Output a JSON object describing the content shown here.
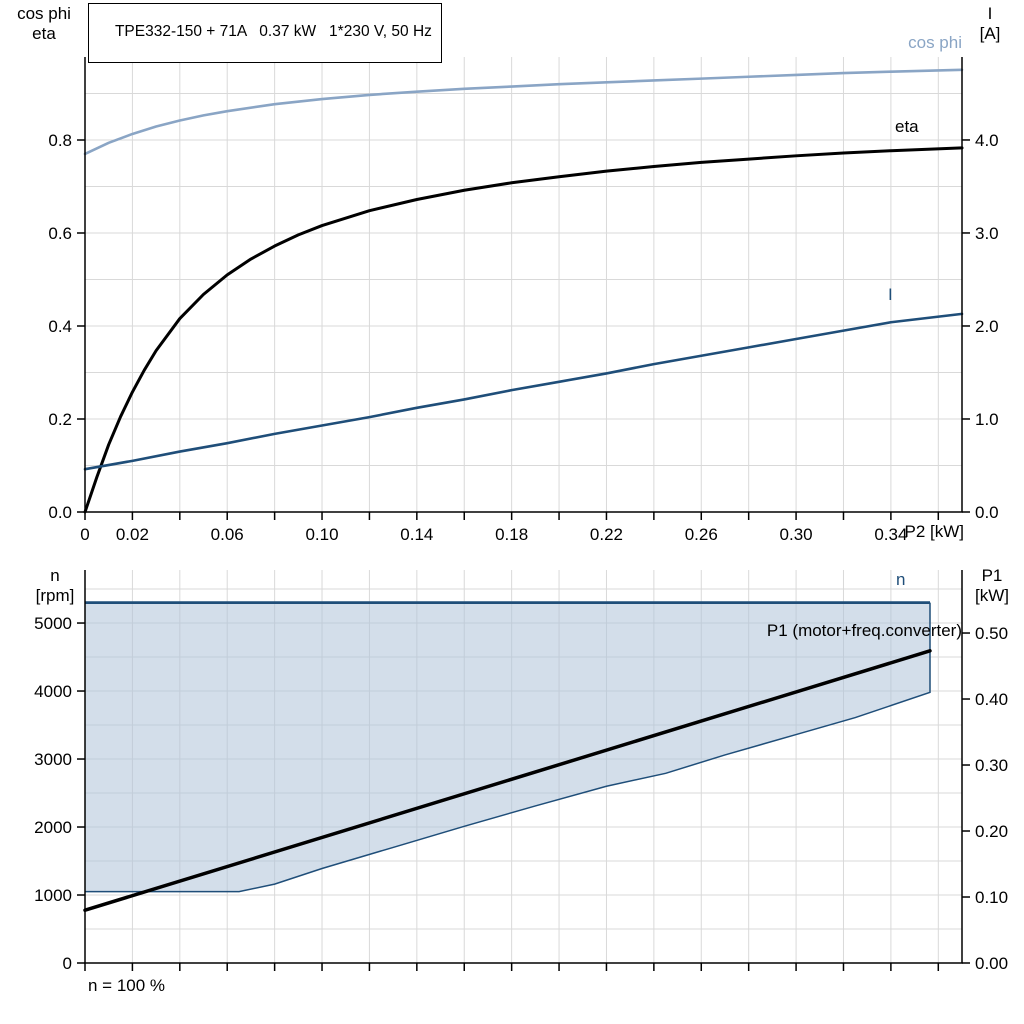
{
  "title": "TPE332-150 + 71A   0.37 kW   1*230 V, 50 Hz",
  "colors": {
    "light_blue": "#8aa5c5",
    "dark_blue": "#1f4e79",
    "grid": "#d9d9d9",
    "axis": "#000000",
    "envelope_fill": "rgba(174,195,217,0.55)"
  },
  "chart_data": [
    {
      "type": "line",
      "name": "top-performance-chart",
      "xlabel": "P2 [kW]",
      "ylabel_left_line1": "cos phi",
      "ylabel_left_line2": "eta",
      "ylabel_right_line1": "I",
      "ylabel_right_line2": "[A]",
      "xlim": [
        0,
        0.37
      ],
      "ylim_left": [
        0,
        0.9785
      ],
      "ylim_right": [
        0,
        4.892
      ],
      "x_grid_step": 0.02,
      "y_grid_step": 0.1,
      "grid_color": "#d9d9d9",
      "x_ticks": [
        0,
        0.02,
        0.06,
        0.1,
        0.14,
        0.18,
        0.22,
        0.26,
        0.3,
        0.34
      ],
      "x_tick_labels": [
        "0",
        "0.02",
        "0.06",
        "0.10",
        "0.14",
        "0.18",
        "0.22",
        "0.26",
        "0.30",
        "0.34"
      ],
      "y_left_ticks": [
        0.0,
        0.2,
        0.4,
        0.6,
        0.8
      ],
      "y_left_tick_labels": [
        "0.0",
        "0.2",
        "0.4",
        "0.6",
        "0.8"
      ],
      "y_right_ticks": [
        0,
        1,
        2,
        3,
        4
      ],
      "y_right_tick_labels": [
        "0.0",
        "1.0",
        "2.0",
        "3.0",
        "4.0"
      ],
      "series": [
        {
          "name": "cos phi",
          "axis": "left",
          "color": "#8aa5c5",
          "width": 2.6,
          "points": [
            [
              0,
              0.77
            ],
            [
              0.01,
              0.794
            ],
            [
              0.02,
              0.813
            ],
            [
              0.03,
              0.829
            ],
            [
              0.04,
              0.842
            ],
            [
              0.05,
              0.853
            ],
            [
              0.06,
              0.862
            ],
            [
              0.08,
              0.877
            ],
            [
              0.1,
              0.888
            ],
            [
              0.12,
              0.897
            ],
            [
              0.14,
              0.904
            ],
            [
              0.16,
              0.91
            ],
            [
              0.18,
              0.915
            ],
            [
              0.2,
              0.92
            ],
            [
              0.22,
              0.924
            ],
            [
              0.24,
              0.928
            ],
            [
              0.26,
              0.932
            ],
            [
              0.28,
              0.936
            ],
            [
              0.3,
              0.94
            ],
            [
              0.32,
              0.944
            ],
            [
              0.34,
              0.947
            ],
            [
              0.37,
              0.951
            ]
          ]
        },
        {
          "name": "eta",
          "axis": "left",
          "color": "#000000",
          "width": 3,
          "points": [
            [
              0,
              0
            ],
            [
              0.005,
              0.075
            ],
            [
              0.01,
              0.145
            ],
            [
              0.015,
              0.205
            ],
            [
              0.02,
              0.258
            ],
            [
              0.025,
              0.305
            ],
            [
              0.03,
              0.347
            ],
            [
              0.04,
              0.416
            ],
            [
              0.05,
              0.468
            ],
            [
              0.06,
              0.51
            ],
            [
              0.07,
              0.544
            ],
            [
              0.08,
              0.572
            ],
            [
              0.09,
              0.596
            ],
            [
              0.1,
              0.616
            ],
            [
              0.12,
              0.648
            ],
            [
              0.14,
              0.672
            ],
            [
              0.16,
              0.692
            ],
            [
              0.18,
              0.708
            ],
            [
              0.2,
              0.721
            ],
            [
              0.22,
              0.733
            ],
            [
              0.24,
              0.743
            ],
            [
              0.26,
              0.752
            ],
            [
              0.28,
              0.759
            ],
            [
              0.3,
              0.766
            ],
            [
              0.32,
              0.772
            ],
            [
              0.34,
              0.777
            ],
            [
              0.37,
              0.783
            ]
          ]
        },
        {
          "name": "I",
          "axis": "right",
          "color": "#1f4e79",
          "width": 2.6,
          "points": [
            [
              0,
              0.46
            ],
            [
              0.02,
              0.55
            ],
            [
              0.04,
              0.65
            ],
            [
              0.06,
              0.74
            ],
            [
              0.08,
              0.84
            ],
            [
              0.1,
              0.93
            ],
            [
              0.12,
              1.02
            ],
            [
              0.14,
              1.12
            ],
            [
              0.16,
              1.21
            ],
            [
              0.18,
              1.31
            ],
            [
              0.2,
              1.4
            ],
            [
              0.22,
              1.49
            ],
            [
              0.24,
              1.59
            ],
            [
              0.26,
              1.68
            ],
            [
              0.28,
              1.77
            ],
            [
              0.3,
              1.86
            ],
            [
              0.32,
              1.95
            ],
            [
              0.34,
              2.04
            ],
            [
              0.37,
              2.13
            ]
          ]
        }
      ]
    },
    {
      "type": "area+line",
      "name": "bottom-speed-power-chart",
      "xlabel": "",
      "ylabel_left_line1": "n",
      "ylabel_left_line2": "[rpm]",
      "ylabel_right_line1": "P1",
      "ylabel_right_line2": "[kW]",
      "footnote": "n = 100 %",
      "xlim": [
        0,
        0.37
      ],
      "ylim_left": [
        0,
        5780
      ],
      "ylim_right": [
        0,
        0.5955
      ],
      "x_grid_step": 0.02,
      "y_grid_step": 500,
      "grid_color": "#d9d9d9",
      "x_ticks": [],
      "x_tick_labels": [],
      "y_left_ticks": [
        0,
        1000,
        2000,
        3000,
        4000,
        5000
      ],
      "y_left_tick_labels": [
        "0",
        "1000",
        "2000",
        "3000",
        "4000",
        "5000"
      ],
      "y_right_ticks": [
        0,
        0.1,
        0.2,
        0.3,
        0.4,
        0.5
      ],
      "y_right_tick_labels": [
        "0.00",
        "0.10",
        "0.20",
        "0.30",
        "0.40",
        "0.50"
      ],
      "envelope": {
        "name": "n",
        "fill": "rgba(174,195,217,0.55)",
        "stroke": "#1f4e79",
        "upper": [
          [
            0,
            5300
          ],
          [
            0.3565,
            5300
          ]
        ],
        "lower": [
          [
            0,
            1050
          ],
          [
            0.065,
            1050
          ],
          [
            0.08,
            1160
          ],
          [
            0.1,
            1390
          ],
          [
            0.13,
            1700
          ],
          [
            0.16,
            2010
          ],
          [
            0.19,
            2310
          ],
          [
            0.22,
            2600
          ],
          [
            0.245,
            2790
          ],
          [
            0.27,
            3060
          ],
          [
            0.3,
            3360
          ],
          [
            0.325,
            3610
          ],
          [
            0.3565,
            3980
          ]
        ]
      },
      "series": [
        {
          "name": "P1 (motor+freq.converter)",
          "axis": "right",
          "color": "#000000",
          "width": 3.5,
          "points": [
            [
              0,
              0.08
            ],
            [
              0.3565,
              0.473
            ]
          ]
        }
      ]
    }
  ]
}
